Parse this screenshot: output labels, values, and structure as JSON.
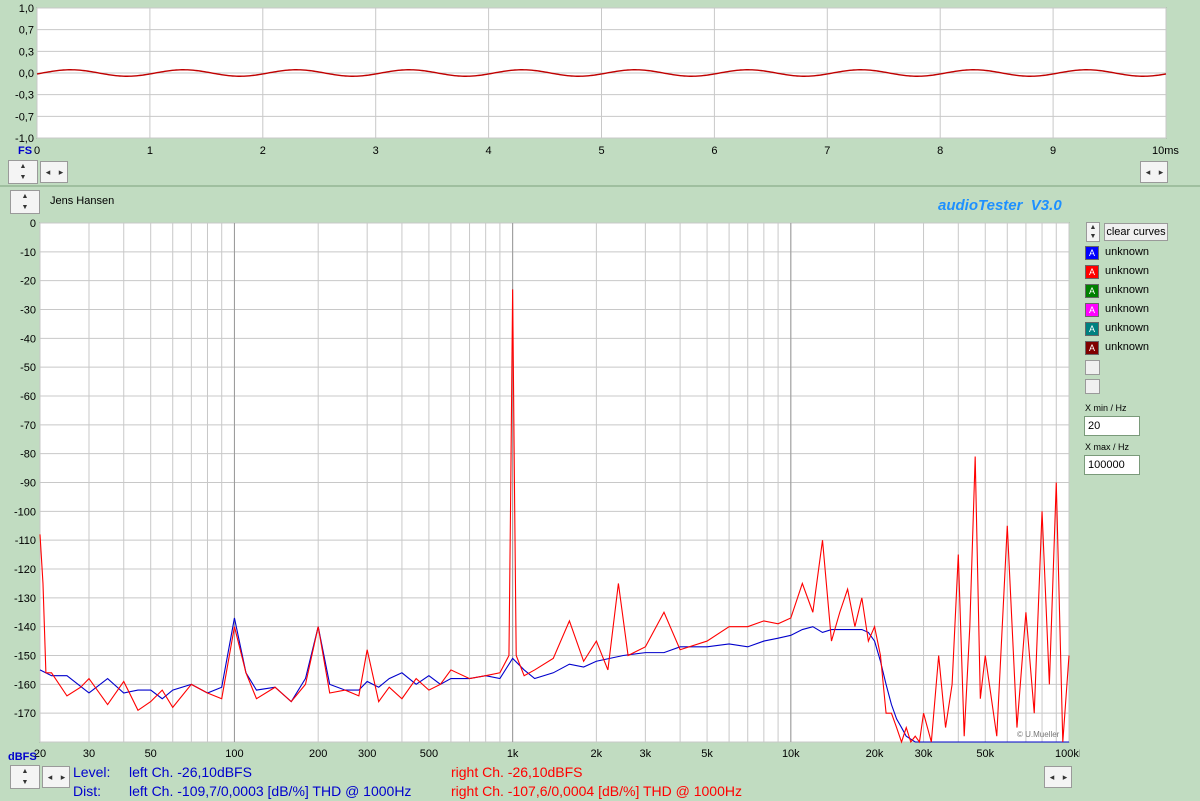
{
  "scope": {
    "unit_label": "FS",
    "y_ticks": [
      "1,0",
      "0,7",
      "0,3",
      "0,0",
      "-0,3",
      "-0,7",
      "-1,0"
    ],
    "x_ticks": [
      "0",
      "1",
      "2",
      "3",
      "4",
      "5",
      "6",
      "7",
      "8",
      "9",
      "10ms"
    ],
    "line_color": "#c00000"
  },
  "header": {
    "user": "Jens Hansen",
    "app_title": "audioTester  V3.0"
  },
  "controls": {
    "clear_label": "clear curves",
    "legend": [
      {
        "letter": "A",
        "label": "unknown",
        "color": "#0000ff"
      },
      {
        "letter": "A",
        "label": "unknown",
        "color": "#ff0000"
      },
      {
        "letter": "A",
        "label": "unknown",
        "color": "#008000"
      },
      {
        "letter": "A",
        "label": "unknown",
        "color": "#ff00ff"
      },
      {
        "letter": "A",
        "label": "unknown",
        "color": "#008080"
      },
      {
        "letter": "A",
        "label": "unknown",
        "color": "#800000"
      }
    ],
    "xmin_label": "X min / Hz",
    "xmin_value": "20",
    "xmax_label": "X max / Hz",
    "xmax_value": "100000"
  },
  "status": {
    "level_label": "Level:",
    "dist_label": "Dist:",
    "left_level": "left Ch. -26,10dBFS",
    "right_level": "right Ch. -26,10dBFS",
    "left_dist": "left Ch. -109,7/0,0003 [dB/%] THD @ 1000Hz",
    "right_dist": "right Ch. -107,6/0,0004 [dB/%] THD @ 1000Hz"
  },
  "watermark": "© U.Mueller",
  "chart_data": [
    {
      "type": "line",
      "title": "",
      "xlabel": "10ms",
      "ylabel": "FS",
      "xlim": [
        0,
        10
      ],
      "ylim": [
        -1.0,
        1.0
      ],
      "grid": true,
      "series": [
        {
          "color": "#c00000",
          "frequency_khz": 1.0,
          "amplitude": 0.05
        }
      ]
    },
    {
      "type": "line",
      "title": "",
      "xlabel": "100kHz",
      "ylabel": "dBFS",
      "x_scale": "log",
      "xlim": [
        20,
        100000
      ],
      "ylim": [
        -180,
        0
      ],
      "grid": true,
      "x_tick_labels": [
        "20",
        "30",
        "50",
        "100",
        "200",
        "300",
        "500",
        "1k",
        "2k",
        "3k",
        "5k",
        "10k",
        "20k",
        "30k",
        "50k",
        "100kHz"
      ],
      "y_tick_labels": [
        "0",
        "-10",
        "-20",
        "-30",
        "-40",
        "-50",
        "-60",
        "-70",
        "-80",
        "-90",
        "-100",
        "-110",
        "-120",
        "-130",
        "-140",
        "-150",
        "-160",
        "-170",
        "-180"
      ],
      "series": [
        {
          "name": "left",
          "color": "#0000cc",
          "x": [
            20,
            22,
            25,
            30,
            35,
            40,
            45,
            50,
            55,
            60,
            70,
            80,
            90,
            100,
            110,
            120,
            140,
            160,
            180,
            200,
            220,
            250,
            280,
            300,
            330,
            360,
            400,
            450,
            500,
            550,
            600,
            700,
            800,
            900,
            1000,
            1100,
            1200,
            1400,
            1600,
            1800,
            2000,
            2500,
            3000,
            3500,
            4000,
            5000,
            6000,
            7000,
            8000,
            9000,
            10000,
            11000,
            12000,
            13000,
            14000,
            15000,
            16000,
            17000,
            18000,
            19000,
            20000,
            21000,
            22000,
            23000,
            24000,
            25000,
            26000,
            28000,
            30000,
            33000,
            36000,
            40000,
            45000,
            50000,
            60000,
            70000,
            80000,
            90000,
            100000
          ],
          "y": [
            -155,
            -157,
            -157,
            -163,
            -158,
            -163,
            -162,
            -162,
            -165,
            -162,
            -160,
            -163,
            -161,
            -137,
            -156,
            -162,
            -161,
            -166,
            -158,
            -140,
            -160,
            -162,
            -162,
            -159,
            -161,
            -158,
            -156,
            -160,
            -157,
            -160,
            -158,
            -158,
            -157,
            -158,
            -151,
            -155,
            -158,
            -156,
            -153,
            -154,
            -152,
            -150,
            -149,
            -149,
            -147,
            -147,
            -146,
            -147,
            -145,
            -144,
            -143,
            -141,
            -140,
            -142,
            -141,
            -141,
            -141,
            -141,
            -141,
            -142,
            -145,
            -152,
            -160,
            -167,
            -172,
            -175,
            -178,
            -180,
            -180,
            -180,
            -180,
            -180,
            -180,
            -180,
            -180,
            -180,
            -180,
            -180,
            -180
          ]
        },
        {
          "name": "right",
          "color": "#ff0000",
          "x": [
            20,
            20.5,
            21,
            22,
            25,
            28,
            30,
            35,
            40,
            45,
            50,
            55,
            60,
            70,
            80,
            90,
            100,
            110,
            120,
            140,
            160,
            180,
            200,
            220,
            250,
            280,
            300,
            330,
            360,
            400,
            450,
            500,
            550,
            600,
            700,
            800,
            900,
            970,
            985,
            1000,
            1015,
            1030,
            1100,
            1200,
            1400,
            1600,
            1800,
            2000,
            2200,
            2400,
            2600,
            3000,
            3500,
            4000,
            5000,
            6000,
            7000,
            8000,
            9000,
            10000,
            11000,
            12000,
            13000,
            14000,
            15000,
            16000,
            17000,
            18000,
            19000,
            20000,
            21000,
            22000,
            23000,
            24000,
            25000,
            26000,
            27000,
            28000,
            29000,
            30000,
            32000,
            34000,
            36000,
            38000,
            40000,
            42000,
            44000,
            46000,
            48000,
            50000,
            55000,
            60000,
            65000,
            70000,
            75000,
            80000,
            85000,
            90000,
            95000,
            100000
          ],
          "y": [
            -108,
            -125,
            -156,
            -156,
            -164,
            -161,
            -158,
            -167,
            -159,
            -169,
            -166,
            -162,
            -168,
            -160,
            -163,
            -165,
            -140,
            -156,
            -165,
            -161,
            -166,
            -160,
            -140,
            -163,
            -162,
            -164,
            -148,
            -166,
            -161,
            -165,
            -158,
            -162,
            -160,
            -155,
            -158,
            -157,
            -156,
            -150,
            -90,
            -23,
            -90,
            -150,
            -157,
            -155,
            -151,
            -138,
            -152,
            -145,
            -155,
            -125,
            -150,
            -147,
            -135,
            -148,
            -145,
            -140,
            -140,
            -138,
            -139,
            -137,
            -125,
            -135,
            -110,
            -145,
            -135,
            -127,
            -140,
            -130,
            -145,
            -140,
            -150,
            -170,
            -170,
            -175,
            -180,
            -175,
            -180,
            -178,
            -180,
            -170,
            -180,
            -150,
            -175,
            -160,
            -115,
            -178,
            -140,
            -81,
            -165,
            -150,
            -178,
            -105,
            -175,
            -135,
            -170,
            -100,
            -160,
            -90,
            -180,
            -150
          ]
        }
      ]
    }
  ]
}
